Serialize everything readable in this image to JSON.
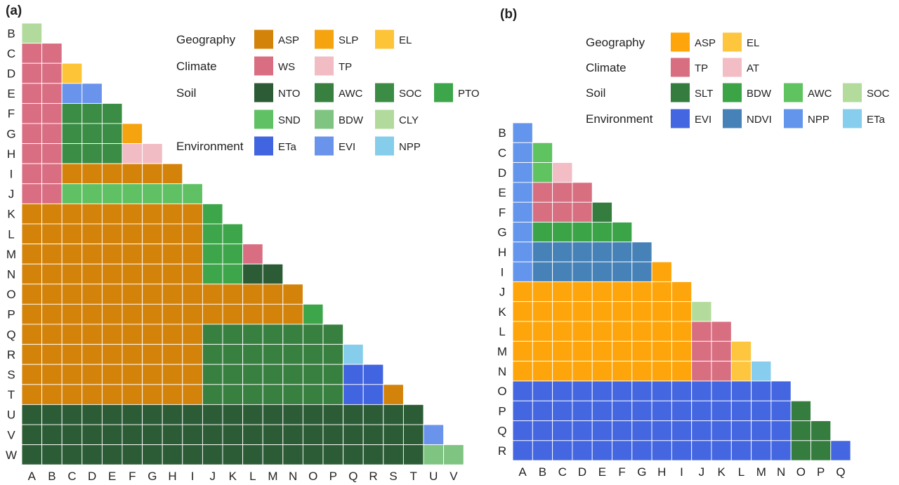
{
  "colors": {
    "ASP": "#d4830a",
    "SLP": "#f5a30e",
    "EL_a": "#fdc437",
    "WS": "#d96e82",
    "TP": "#f2bcc4",
    "NTO": "#2b5c36",
    "AWC": "#37803f",
    "SOC": "#3b8c45",
    "PTO": "#3ea64a",
    "SND": "#5fc163",
    "BDW": "#80c482",
    "CLY": "#b2da9c",
    "ETa": "#4164e0",
    "EVI": "#6a94ec",
    "NPP": "#85cdea",
    "b_ASP": "#fea50b",
    "b_EL": "#fec63f",
    "b_TP": "#d86f81",
    "b_AT": "#f3bdc5",
    "b_SLT": "#347d3f",
    "b_BDW": "#3aa447",
    "b_AWC": "#5fc35f",
    "b_SOC": "#b3dc9c",
    "b_EVI": "#4466e1",
    "b_NDVI": "#4682b8",
    "b_NPP": "#6495ed",
    "b_ETa": "#87cded"
  },
  "chart_data": [
    {
      "type": "heatmap",
      "panel_label": "(a)",
      "rows": [
        "B",
        "C",
        "D",
        "E",
        "F",
        "G",
        "H",
        "I",
        "J",
        "K",
        "L",
        "M",
        "N",
        "O",
        "P",
        "Q",
        "R",
        "S",
        "T",
        "U",
        "V",
        "W"
      ],
      "cols": [
        "A",
        "B",
        "C",
        "D",
        "E",
        "F",
        "G",
        "H",
        "I",
        "J",
        "K",
        "L",
        "M",
        "N",
        "O",
        "P",
        "Q",
        "R",
        "S",
        "T",
        "U",
        "V"
      ],
      "legend": [
        {
          "group": "Geography",
          "items": [
            {
              "code": "ASP",
              "color": "#d4830a"
            },
            {
              "code": "SLP",
              "color": "#f5a30e"
            },
            {
              "code": "EL",
              "color": "#fdc437"
            }
          ]
        },
        {
          "group": "Climate",
          "items": [
            {
              "code": "WS",
              "color": "#d96e82"
            },
            {
              "code": "TP",
              "color": "#f2bcc4"
            }
          ]
        },
        {
          "group": "Soil",
          "items": [
            {
              "code": "NTO",
              "color": "#2b5c36"
            },
            {
              "code": "AWC",
              "color": "#37803f"
            },
            {
              "code": "SOC",
              "color": "#3b8c45"
            },
            {
              "code": "PTO",
              "color": "#3ea64a"
            }
          ]
        },
        {
          "group": "",
          "items": [
            {
              "code": "SND",
              "color": "#5fc163"
            },
            {
              "code": "BDW",
              "color": "#80c482"
            },
            {
              "code": "CLY",
              "color": "#b2da9c"
            }
          ]
        },
        {
          "group": "Environment",
          "items": [
            {
              "code": "ETa",
              "color": "#4164e0"
            },
            {
              "code": "EVI",
              "color": "#6a94ec"
            },
            {
              "code": "NPP",
              "color": "#85cdea"
            }
          ]
        }
      ],
      "cells": [
        [
          "CLY"
        ],
        [
          "WS",
          "WS"
        ],
        [
          "WS",
          "WS",
          "EL"
        ],
        [
          "WS",
          "WS",
          "EVI",
          "EVI"
        ],
        [
          "WS",
          "WS",
          "SOC",
          "SOC",
          "SOC"
        ],
        [
          "WS",
          "WS",
          "SOC",
          "SOC",
          "SOC",
          "SLP"
        ],
        [
          "WS",
          "WS",
          "SOC",
          "SOC",
          "SOC",
          "TP",
          "TP"
        ],
        [
          "WS",
          "WS",
          "ASP",
          "ASP",
          "ASP",
          "ASP",
          "ASP",
          "ASP"
        ],
        [
          "WS",
          "WS",
          "SND",
          "SND",
          "SND",
          "SND",
          "SND",
          "SND",
          "SND"
        ],
        [
          "ASP",
          "ASP",
          "ASP",
          "ASP",
          "ASP",
          "ASP",
          "ASP",
          "ASP",
          "ASP",
          "PTO"
        ],
        [
          "ASP",
          "ASP",
          "ASP",
          "ASP",
          "ASP",
          "ASP",
          "ASP",
          "ASP",
          "ASP",
          "PTO",
          "PTO"
        ],
        [
          "ASP",
          "ASP",
          "ASP",
          "ASP",
          "ASP",
          "ASP",
          "ASP",
          "ASP",
          "ASP",
          "PTO",
          "PTO",
          "WS"
        ],
        [
          "ASP",
          "ASP",
          "ASP",
          "ASP",
          "ASP",
          "ASP",
          "ASP",
          "ASP",
          "ASP",
          "PTO",
          "PTO",
          "NTO",
          "NTO"
        ],
        [
          "ASP",
          "ASP",
          "ASP",
          "ASP",
          "ASP",
          "ASP",
          "ASP",
          "ASP",
          "ASP",
          "ASP",
          "ASP",
          "ASP",
          "ASP",
          "ASP"
        ],
        [
          "ASP",
          "ASP",
          "ASP",
          "ASP",
          "ASP",
          "ASP",
          "ASP",
          "ASP",
          "ASP",
          "ASP",
          "ASP",
          "ASP",
          "ASP",
          "ASP",
          "PTO"
        ],
        [
          "ASP",
          "ASP",
          "ASP",
          "ASP",
          "ASP",
          "ASP",
          "ASP",
          "ASP",
          "ASP",
          "AWC",
          "AWC",
          "AWC",
          "AWC",
          "AWC",
          "AWC",
          "AWC"
        ],
        [
          "ASP",
          "ASP",
          "ASP",
          "ASP",
          "ASP",
          "ASP",
          "ASP",
          "ASP",
          "ASP",
          "AWC",
          "AWC",
          "AWC",
          "AWC",
          "AWC",
          "AWC",
          "AWC",
          "NPP"
        ],
        [
          "ASP",
          "ASP",
          "ASP",
          "ASP",
          "ASP",
          "ASP",
          "ASP",
          "ASP",
          "ASP",
          "AWC",
          "AWC",
          "AWC",
          "AWC",
          "AWC",
          "AWC",
          "AWC",
          "ETa",
          "ETa"
        ],
        [
          "ASP",
          "ASP",
          "ASP",
          "ASP",
          "ASP",
          "ASP",
          "ASP",
          "ASP",
          "ASP",
          "AWC",
          "AWC",
          "AWC",
          "AWC",
          "AWC",
          "AWC",
          "AWC",
          "ETa",
          "ETa",
          "ASP"
        ],
        [
          "NTO",
          "NTO",
          "NTO",
          "NTO",
          "NTO",
          "NTO",
          "NTO",
          "NTO",
          "NTO",
          "NTO",
          "NTO",
          "NTO",
          "NTO",
          "NTO",
          "NTO",
          "NTO",
          "NTO",
          "NTO",
          "NTO",
          "NTO"
        ],
        [
          "NTO",
          "NTO",
          "NTO",
          "NTO",
          "NTO",
          "NTO",
          "NTO",
          "NTO",
          "NTO",
          "NTO",
          "NTO",
          "NTO",
          "NTO",
          "NTO",
          "NTO",
          "NTO",
          "NTO",
          "NTO",
          "NTO",
          "NTO",
          "EVI"
        ],
        [
          "NTO",
          "NTO",
          "NTO",
          "NTO",
          "NTO",
          "NTO",
          "NTO",
          "NTO",
          "NTO",
          "NTO",
          "NTO",
          "NTO",
          "NTO",
          "NTO",
          "NTO",
          "NTO",
          "NTO",
          "NTO",
          "NTO",
          "NTO",
          "BDW",
          "BDW"
        ]
      ]
    },
    {
      "type": "heatmap",
      "panel_label": "(b)",
      "rows": [
        "B",
        "C",
        "D",
        "E",
        "F",
        "G",
        "H",
        "I",
        "J",
        "K",
        "L",
        "M",
        "N",
        "O",
        "P",
        "Q",
        "R"
      ],
      "cols": [
        "A",
        "B",
        "C",
        "D",
        "E",
        "F",
        "G",
        "H",
        "I",
        "J",
        "K",
        "L",
        "M",
        "N",
        "O",
        "P",
        "Q"
      ],
      "legend": [
        {
          "group": "Geography",
          "items": [
            {
              "code": "ASP",
              "color": "#fea50b"
            },
            {
              "code": "EL",
              "color": "#fec63f"
            }
          ]
        },
        {
          "group": "Climate",
          "items": [
            {
              "code": "TP",
              "color": "#d86f81"
            },
            {
              "code": "AT",
              "color": "#f3bdc5"
            }
          ]
        },
        {
          "group": "Soil",
          "items": [
            {
              "code": "SLT",
              "color": "#347d3f"
            },
            {
              "code": "BDW",
              "color": "#3aa447"
            },
            {
              "code": "AWC",
              "color": "#5fc35f"
            },
            {
              "code": "SOC",
              "color": "#b3dc9c"
            }
          ]
        },
        {
          "group": "Environment",
          "items": [
            {
              "code": "EVI",
              "color": "#4466e1"
            },
            {
              "code": "NDVI",
              "color": "#4682b8"
            },
            {
              "code": "NPP",
              "color": "#6495ed"
            },
            {
              "code": "ETa",
              "color": "#87cded"
            }
          ]
        }
      ],
      "cells": [
        [
          "NPP"
        ],
        [
          "NPP",
          "AWC"
        ],
        [
          "NPP",
          "AWC",
          "AT"
        ],
        [
          "NPP",
          "TP",
          "TP",
          "TP"
        ],
        [
          "NPP",
          "TP",
          "TP",
          "TP",
          "SLT"
        ],
        [
          "NPP",
          "BDW",
          "BDW",
          "BDW",
          "BDW",
          "BDW"
        ],
        [
          "NPP",
          "NDVI",
          "NDVI",
          "NDVI",
          "NDVI",
          "NDVI",
          "NDVI"
        ],
        [
          "NPP",
          "NDVI",
          "NDVI",
          "NDVI",
          "NDVI",
          "NDVI",
          "NDVI",
          "ASP"
        ],
        [
          "ASP",
          "ASP",
          "ASP",
          "ASP",
          "ASP",
          "ASP",
          "ASP",
          "ASP",
          "ASP"
        ],
        [
          "ASP",
          "ASP",
          "ASP",
          "ASP",
          "ASP",
          "ASP",
          "ASP",
          "ASP",
          "ASP",
          "SOC"
        ],
        [
          "ASP",
          "ASP",
          "ASP",
          "ASP",
          "ASP",
          "ASP",
          "ASP",
          "ASP",
          "ASP",
          "TP",
          "TP"
        ],
        [
          "ASP",
          "ASP",
          "ASP",
          "ASP",
          "ASP",
          "ASP",
          "ASP",
          "ASP",
          "ASP",
          "TP",
          "TP",
          "EL"
        ],
        [
          "ASP",
          "ASP",
          "ASP",
          "ASP",
          "ASP",
          "ASP",
          "ASP",
          "ASP",
          "ASP",
          "TP",
          "TP",
          "EL",
          "ETa"
        ],
        [
          "EVI",
          "EVI",
          "EVI",
          "EVI",
          "EVI",
          "EVI",
          "EVI",
          "EVI",
          "EVI",
          "EVI",
          "EVI",
          "EVI",
          "EVI",
          "EVI"
        ],
        [
          "EVI",
          "EVI",
          "EVI",
          "EVI",
          "EVI",
          "EVI",
          "EVI",
          "EVI",
          "EVI",
          "EVI",
          "EVI",
          "EVI",
          "EVI",
          "EVI",
          "SLT"
        ],
        [
          "EVI",
          "EVI",
          "EVI",
          "EVI",
          "EVI",
          "EVI",
          "EVI",
          "EVI",
          "EVI",
          "EVI",
          "EVI",
          "EVI",
          "EVI",
          "EVI",
          "SLT",
          "SLT"
        ],
        [
          "EVI",
          "EVI",
          "EVI",
          "EVI",
          "EVI",
          "EVI",
          "EVI",
          "EVI",
          "EVI",
          "EVI",
          "EVI",
          "EVI",
          "EVI",
          "EVI",
          "SLT",
          "SLT",
          "EVI"
        ]
      ]
    }
  ]
}
